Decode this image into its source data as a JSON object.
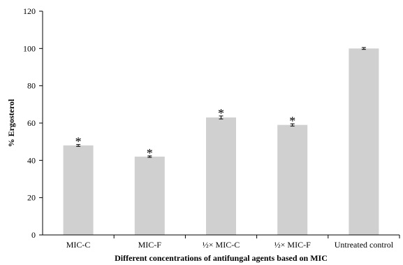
{
  "chart_data": {
    "type": "bar",
    "title": "",
    "xlabel": "Different concentrations of antifungal agents based on MIC",
    "ylabel": "% Ergosterol",
    "categories": [
      "MIC-C",
      "MIC-F",
      "½× MIC-C",
      "½× MIC-F",
      "Untreated control"
    ],
    "values": [
      48,
      42,
      63,
      59,
      100
    ],
    "errors": [
      0.5,
      0.4,
      0.8,
      0.6,
      0.5
    ],
    "annotations": [
      "*",
      "*",
      "*",
      "*",
      ""
    ],
    "ylim": [
      0,
      120
    ],
    "yticks": [
      0,
      20,
      40,
      60,
      80,
      100,
      120
    ],
    "grid": false,
    "bar_color": "#d0d0d0"
  }
}
